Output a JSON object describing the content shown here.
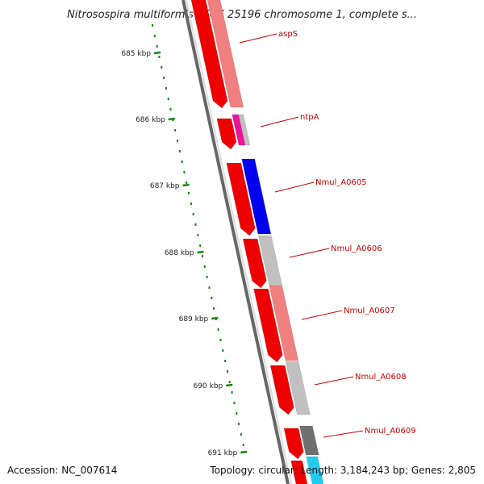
{
  "title": "Nitrosospira multiformis ATCC 25196 chromosome 1, complete s...",
  "footer": {
    "accession": "Accession: NC_007614",
    "summary": "Topology: circular; Length: 3,184,243 bp; Genes: 2,805"
  },
  "ruler_ticks": [
    {
      "label": "685 kbp"
    },
    {
      "label": "686 kbp"
    },
    {
      "label": "687 kbp"
    },
    {
      "label": "688 kbp"
    },
    {
      "label": "689 kbp"
    },
    {
      "label": "690 kbp"
    },
    {
      "label": "691 kbp"
    }
  ],
  "gene_labels": [
    "aspS",
    "ntpA",
    "Nmul_A0605",
    "Nmul_A0606",
    "Nmul_A0607",
    "Nmul_A0608",
    "Nmul_A0609"
  ],
  "colors": {
    "cds_forward": "#ee0000",
    "cds_reverse": "#ee0000",
    "ruler": "#118811",
    "label": "#cc0000",
    "backbone": "#777777",
    "cog_salmon": "#f08080",
    "cog_gray": "#c0c0c0",
    "cog_blue": "#0000ee",
    "cog_magenta": "#ee1199",
    "cog_darkgray": "#707070",
    "cog_cyan": "#22ccee"
  }
}
